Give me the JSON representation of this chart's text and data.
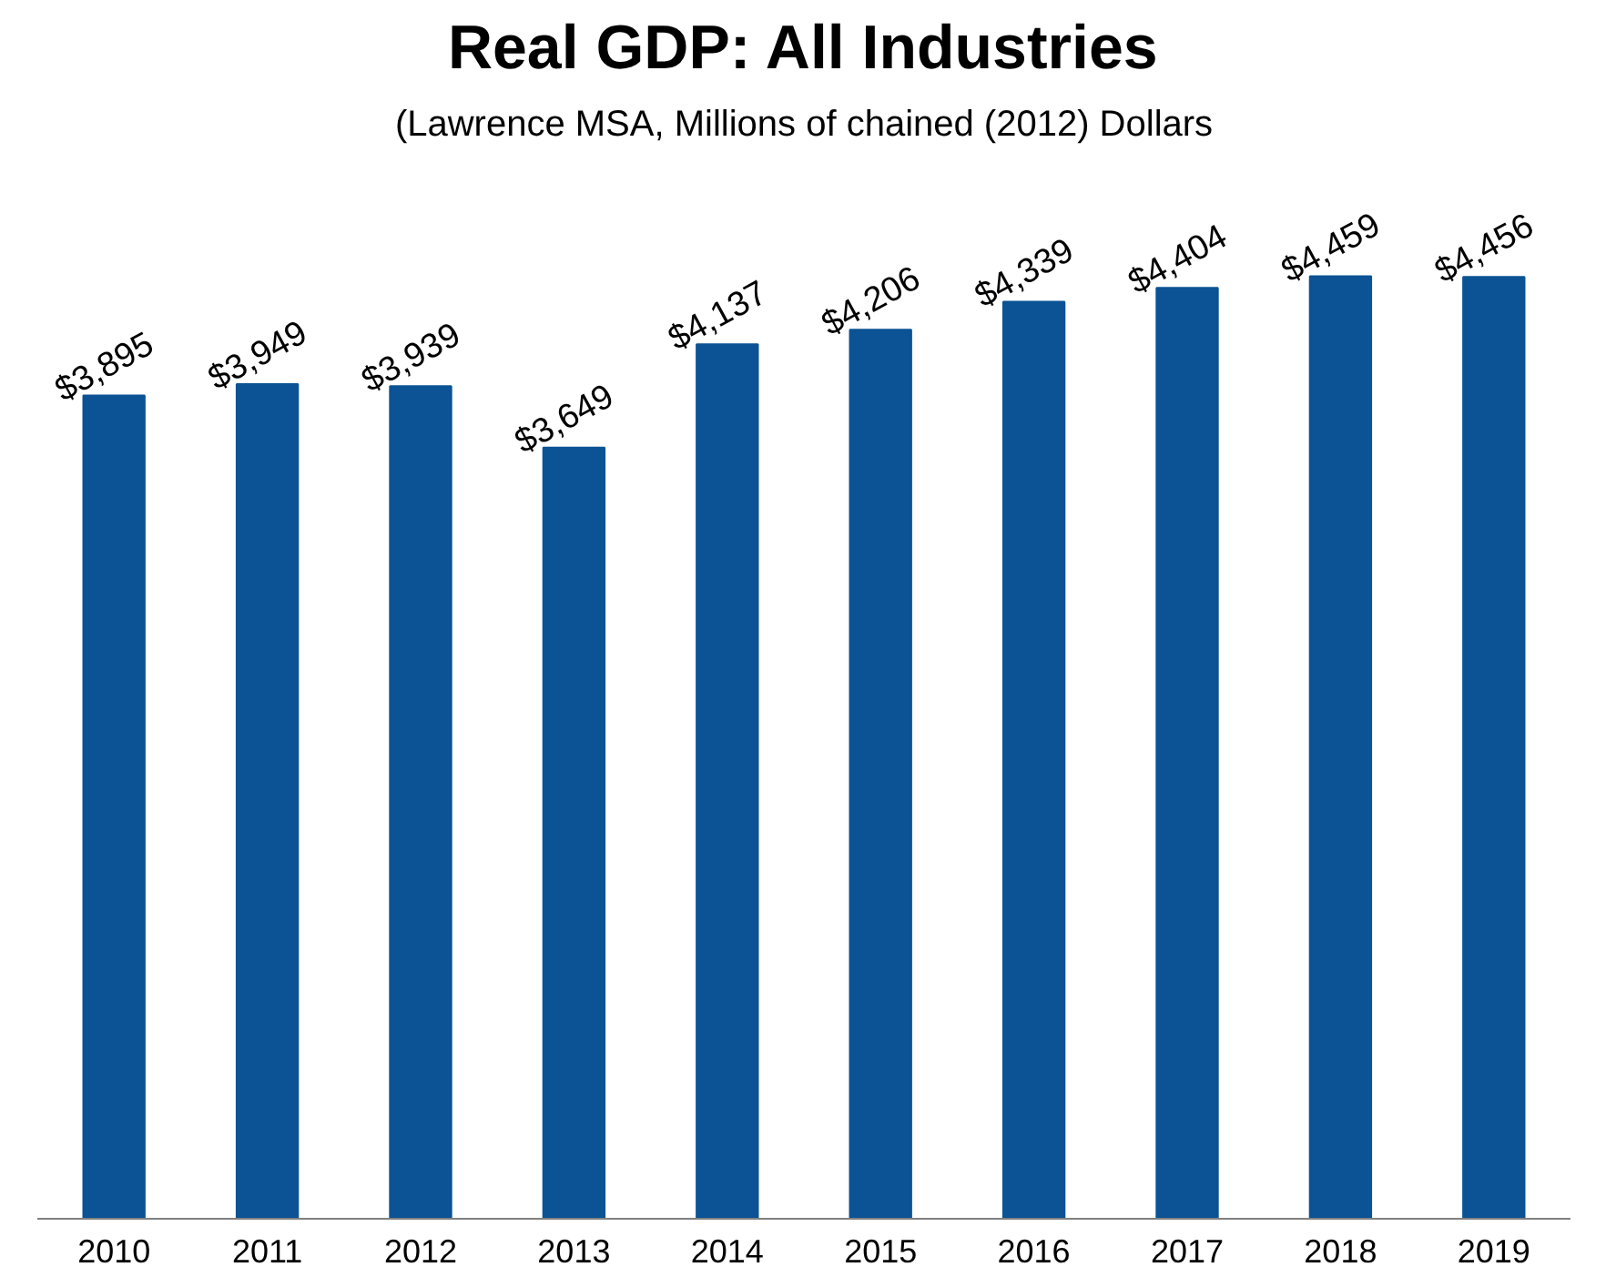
{
  "chart_data": {
    "type": "bar",
    "title": "Real GDP: All Industries",
    "subtitle": "(Lawrence MSA, Millions of chained (2012) Dollars",
    "categories": [
      "2010",
      "2011",
      "2012",
      "2013",
      "2014",
      "2015",
      "2016",
      "2017",
      "2018",
      "2019"
    ],
    "values": [
      3895,
      3949,
      3939,
      3649,
      4137,
      4206,
      4339,
      4404,
      4459,
      4456
    ],
    "value_labels": [
      "$3,895",
      "$3,949",
      "$3,939",
      "$3,649",
      "$4,137",
      "$4,206",
      "$4,339",
      "$4,404",
      "$4,459",
      "$4,456"
    ],
    "color": "#0b5394"
  }
}
